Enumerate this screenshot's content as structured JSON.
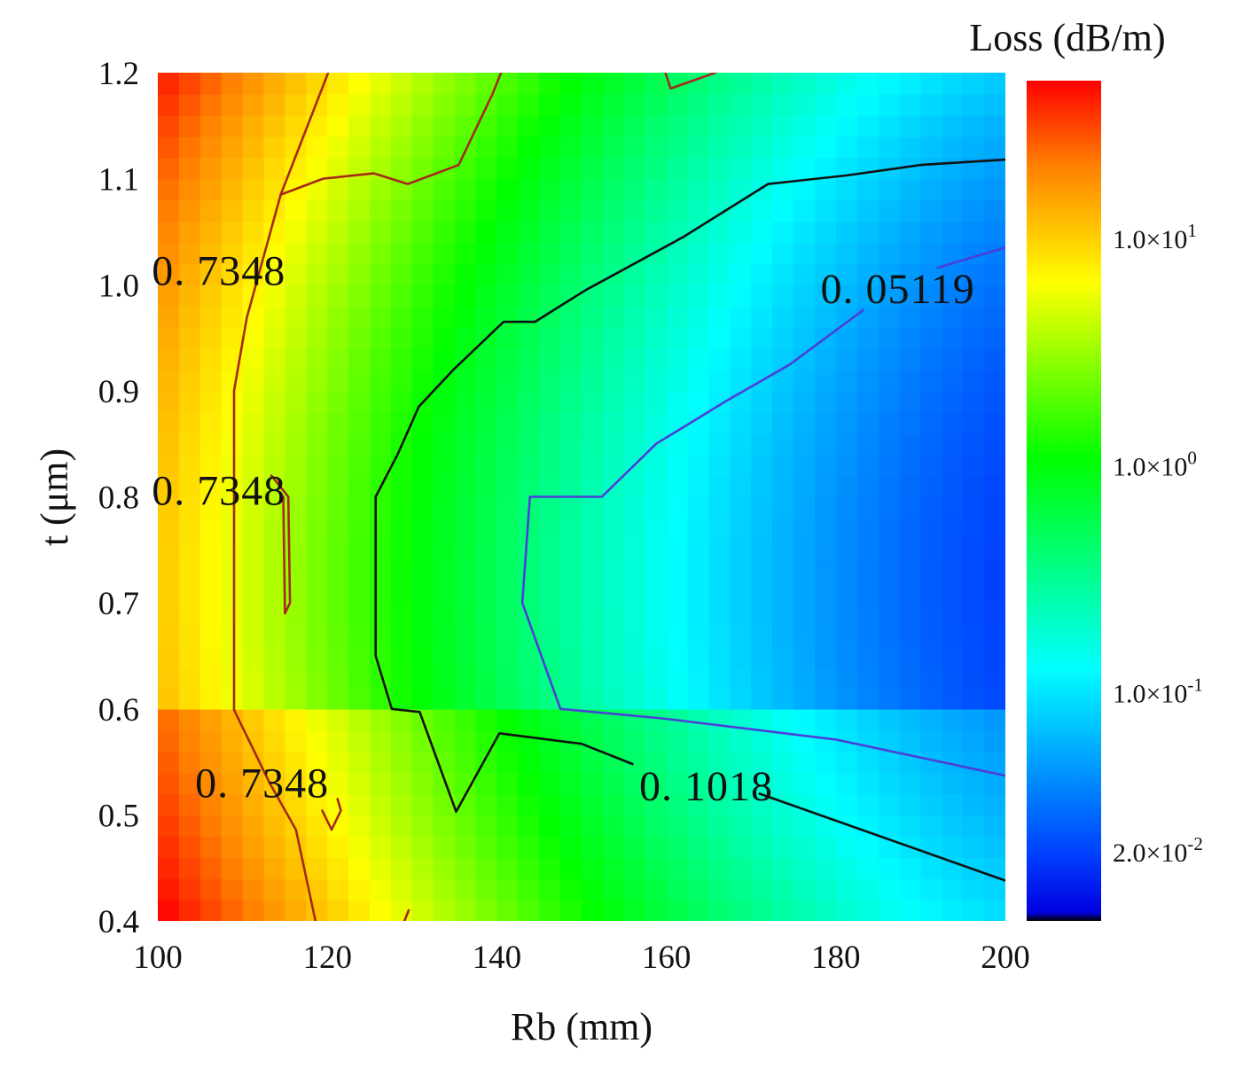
{
  "chart_data": {
    "type": "heatmap",
    "subtype": "filled-contour",
    "xlabel": "Rb (mm)",
    "ylabel": "t (μm)",
    "x_range": [
      100,
      200
    ],
    "y_range": [
      0.4,
      1.2
    ],
    "x_ticks": [
      "100",
      "120",
      "140",
      "160",
      "180",
      "200"
    ],
    "y_ticks": [
      "0.4",
      "0.5",
      "0.6",
      "0.7",
      "0.8",
      "0.9",
      "1.0",
      "1.1",
      "1.2"
    ],
    "colorbar": {
      "title": "Loss (dB/m)",
      "scale": "log",
      "range": [
        0.01,
        50
      ],
      "ticks": [
        {
          "value": 10,
          "label": "1.0×10",
          "exp": "1"
        },
        {
          "value": 1,
          "label": "1.0×10",
          "exp": "0"
        },
        {
          "value": 0.1,
          "label": "1.0×10",
          "exp": "-1"
        },
        {
          "value": 0.02,
          "label": "2.0×10",
          "exp": "-2"
        }
      ]
    },
    "contours": [
      {
        "level": 0.7348,
        "color": "#a52a1a",
        "labels": [
          {
            "text": "0. 7348",
            "at": [
              107.2,
              1.013
            ]
          },
          {
            "text": "0. 7348",
            "at": [
              107.2,
              0.806
            ]
          },
          {
            "text": "0. 7348",
            "at": [
              112.3,
              0.53
            ]
          }
        ],
        "lines": [
          [
            [
              120.1,
              1.2
            ],
            [
              114.5,
              1.085
            ],
            [
              110.5,
              0.969
            ],
            [
              109,
              0.9
            ],
            [
              109,
              0.599
            ],
            [
              113.2,
              0.53
            ],
            [
              116.3,
              0.486
            ],
            [
              118.6,
              0.4
            ]
          ],
          [
            [
              113.4,
              0.82
            ],
            [
              115.4,
              0.8
            ],
            [
              115.6,
              0.7
            ],
            [
              115.0,
              0.69
            ],
            [
              114.8,
              0.8
            ]
          ],
          [
            [
              119.4,
              0.504
            ],
            [
              120.5,
              0.486
            ],
            [
              121.6,
              0.504
            ],
            [
              121.2,
              0.515
            ]
          ],
          [
            [
              129.1,
              0.4
            ],
            [
              129.6,
              0.41
            ]
          ],
          [
            [
              114.5,
              1.085
            ],
            [
              119.5,
              1.1
            ],
            [
              125.5,
              1.105
            ],
            [
              129.5,
              1.095
            ],
            [
              135.5,
              1.113
            ],
            [
              139.5,
              1.18
            ],
            [
              140.5,
              1.2
            ]
          ],
          [
            [
              159.9,
              1.2
            ],
            [
              160.5,
              1.185
            ],
            [
              165.8,
              1.2
            ]
          ]
        ]
      },
      {
        "level": 0.1018,
        "color": "#111111",
        "labels": [
          {
            "text": "0. 1018",
            "at": [
              164.7,
              0.527
            ]
          }
        ],
        "lines": [
          [
            [
              200,
              1.118
            ],
            [
              190,
              1.113
            ],
            [
              181.2,
              1.103
            ],
            [
              172,
              1.095
            ],
            [
              162,
              1.045
            ],
            [
              150.5,
              0.995
            ],
            [
              144.5,
              0.965
            ],
            [
              140.8,
              0.965
            ],
            [
              134.9,
              0.92
            ],
            [
              130.8,
              0.885
            ],
            [
              128.3,
              0.84
            ],
            [
              125.7,
              0.8
            ],
            [
              125.7,
              0.65
            ],
            [
              127.6,
              0.6
            ],
            [
              130.9,
              0.597
            ],
            [
              135.2,
              0.503
            ],
            [
              140.3,
              0.577
            ],
            [
              150.0,
              0.567
            ],
            [
              156.0,
              0.548
            ]
          ],
          [
            [
              171.0,
              0.52
            ],
            [
              200,
              0.438
            ]
          ]
        ]
      },
      {
        "level": 0.05119,
        "color": "#4b3fd8",
        "labels": [
          {
            "text": "0. 05119",
            "at": [
              187.3,
              0.996
            ]
          }
        ],
        "lines": [
          [
            [
              200,
              1.035
            ],
            [
              197.0,
              1.028
            ],
            [
              192.0,
              1.016
            ]
          ],
          [
            [
              183.2,
              0.976
            ],
            [
              174.6,
              0.925
            ],
            [
              167.0,
              0.89
            ],
            [
              158.8,
              0.85
            ],
            [
              152.4,
              0.8
            ],
            [
              148.8,
              0.8
            ],
            [
              143.9,
              0.8
            ],
            [
              143.0,
              0.7
            ],
            [
              147.5,
              0.6
            ],
            [
              159.5,
              0.591
            ],
            [
              180.0,
              0.571
            ],
            [
              200,
              0.537
            ]
          ]
        ]
      }
    ]
  }
}
